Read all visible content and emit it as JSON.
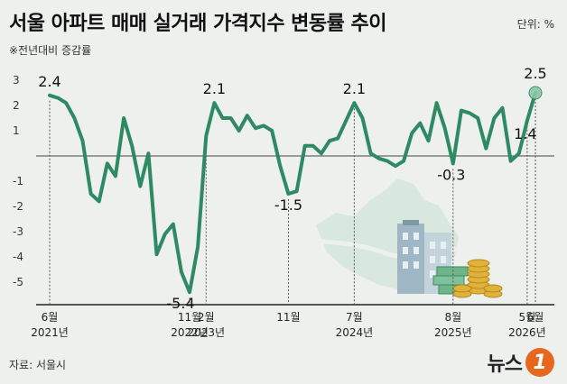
{
  "title": "서울 아파트 매매 실거래 가격지수 변동률 추이",
  "subtitle": "※전년대비 증감률",
  "unit": "단위: %",
  "source": "자료: 서울시",
  "logo": {
    "text": "뉴스",
    "badge": "1"
  },
  "colors": {
    "line": "#2e8a63",
    "accent": "#e8671f",
    "background": "#eef0ee"
  },
  "chart_data": {
    "type": "line",
    "ylim": [
      -6,
      3
    ],
    "y_ticks": [
      3,
      2,
      1,
      -1,
      -2,
      -3,
      -4,
      -5
    ],
    "y_tick_labels": [
      "3",
      "2",
      "1",
      "-1",
      "-2",
      "-3",
      "-4",
      "-5"
    ],
    "series": [
      {
        "values": [
          2.4,
          2.3,
          2.1,
          1.5,
          0.6,
          -1.5,
          -1.8,
          -0.3,
          -0.8,
          1.5,
          0.4,
          -1.2,
          0.1,
          -3.9,
          -3.1,
          -2.7,
          -4.6,
          -5.4,
          -3.6,
          0.8,
          2.1,
          1.5,
          1.5,
          1.0,
          1.6,
          1.1,
          1.2,
          1.0,
          -0.4,
          -1.5,
          -1.4,
          0.4,
          0.4,
          0.1,
          0.6,
          0.7,
          1.4,
          2.1,
          1.5,
          0.1,
          -0.1,
          -0.2,
          -0.4,
          -0.2,
          0.9,
          1.3,
          0.6,
          2.1,
          1.1,
          -0.3,
          1.8,
          1.7,
          1.5,
          0.3,
          1.5,
          1.9,
          -0.2,
          0.1,
          1.4,
          2.5
        ]
      }
    ],
    "x_ticks": [
      {
        "index": 0,
        "month": "6월",
        "year": "2021년"
      },
      {
        "index": 17,
        "month": "11월",
        "year": "2022년"
      },
      {
        "index": 19,
        "month": "2월",
        "year": "2023년"
      },
      {
        "index": 29,
        "month": "11월",
        "year": ""
      },
      {
        "index": 37,
        "month": "7월",
        "year": "2024년"
      },
      {
        "index": 49,
        "month": "8월",
        "year": "2025년"
      },
      {
        "index": 58,
        "month": "5월",
        "year": "2026년"
      },
      {
        "index": 59,
        "month": "6월",
        "year": ""
      }
    ],
    "annotations": [
      {
        "index": 0,
        "label": "2.4"
      },
      {
        "index": 17,
        "label": "-5.4"
      },
      {
        "index": 20,
        "label": "2.1"
      },
      {
        "index": 29,
        "label": "-1.5"
      },
      {
        "index": 37,
        "label": "2.1"
      },
      {
        "index": 49,
        "label": "-0.3"
      },
      {
        "index": 58,
        "label": "1.4"
      },
      {
        "index": 59,
        "label": "2.5"
      }
    ]
  }
}
